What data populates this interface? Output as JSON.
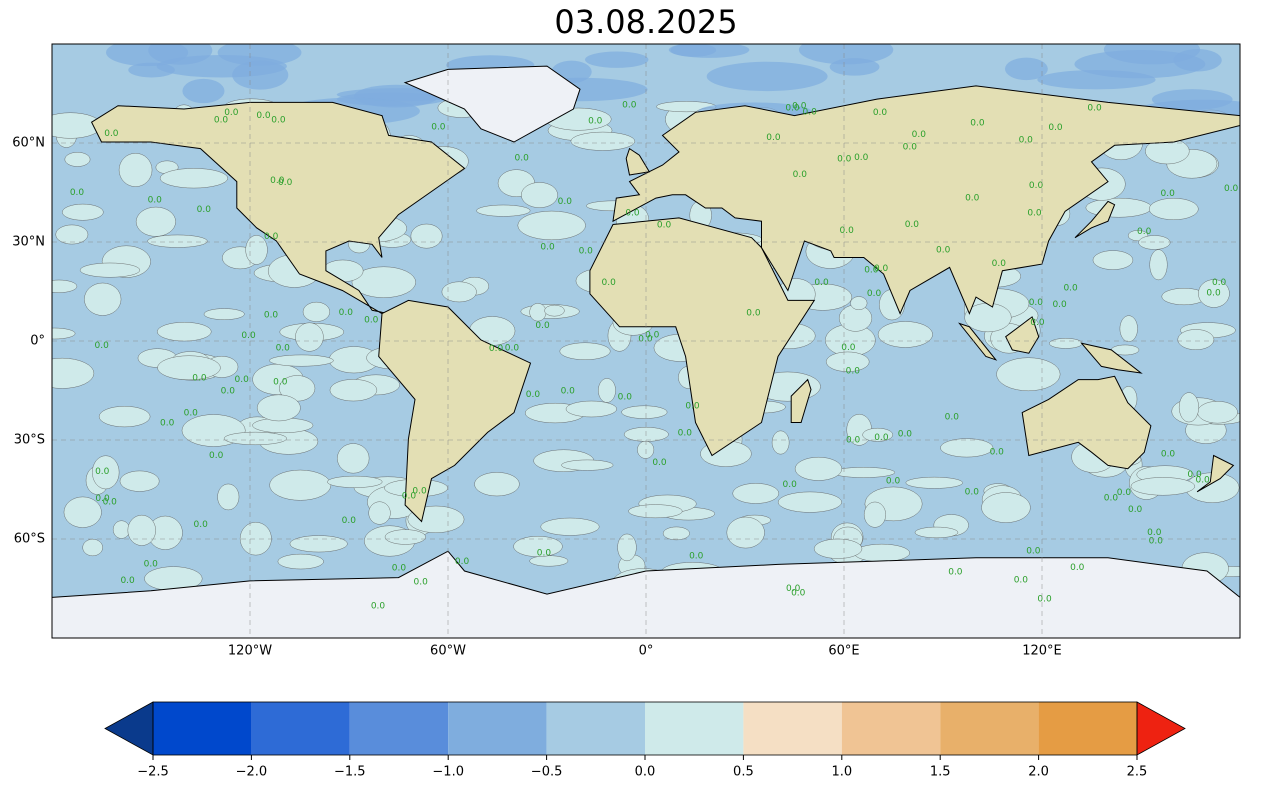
{
  "title": "03.08.2025",
  "map": {
    "projection": "equirectangular",
    "xlim": [
      -180,
      180
    ],
    "ylim": [
      -90,
      90
    ],
    "grid": true,
    "xticks": [
      {
        "value": -120,
        "label": "120°W"
      },
      {
        "value": -60,
        "label": "60°W"
      },
      {
        "value": 0,
        "label": "0°"
      },
      {
        "value": 60,
        "label": "60°E"
      },
      {
        "value": 120,
        "label": "120°E"
      }
    ],
    "yticks": [
      {
        "value": -60,
        "label": "60°S"
      },
      {
        "value": -30,
        "label": "30°S"
      },
      {
        "value": 0,
        "label": "0°"
      },
      {
        "value": 30,
        "label": "30°N"
      },
      {
        "value": 60,
        "label": "60°N"
      }
    ],
    "ocean_color": "#a6cbe3",
    "contour_color": "#2ca02c",
    "contour_label": "0.0"
  },
  "colorbar": {
    "clim": [
      -2.5,
      2.5
    ],
    "ticks": [
      {
        "value": -2.5,
        "label": "−2.5"
      },
      {
        "value": -2.0,
        "label": "−2.0"
      },
      {
        "value": -1.5,
        "label": "−1.5"
      },
      {
        "value": -1.0,
        "label": "−1.0"
      },
      {
        "value": -0.5,
        "label": "−0.5"
      },
      {
        "value": 0,
        "label": "0.0"
      },
      0.5,
      {
        "value": 1.0,
        "label": "1.0"
      },
      1.5,
      {
        "value": 2.0,
        "label": "2.0"
      },
      2.5
    ],
    "colors": [
      "#0048cc",
      "#2e6bd6",
      "#598ddb",
      "#7fadde",
      "#a6cbe3",
      "#cfeaea",
      "#f5dfc4",
      "#f0c494",
      "#e8b06a",
      "#e59c44"
    ],
    "extend": "both",
    "under_color": "#0a3a8c",
    "over_color": "#ee2211"
  }
}
